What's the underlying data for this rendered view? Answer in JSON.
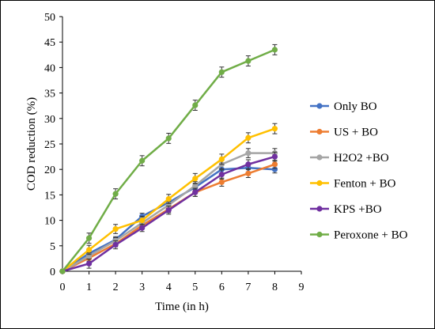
{
  "chart_data": {
    "type": "line",
    "title": "",
    "xlabel": "Time (in h)",
    "ylabel": "COD reduction (%)",
    "xlim": [
      0,
      9
    ],
    "ylim": [
      0,
      50
    ],
    "xticks": [
      "0",
      "1",
      "2",
      "3",
      "4",
      "5",
      "6",
      "7",
      "8",
      "9"
    ],
    "yticks": [
      "0",
      "5",
      "10",
      "15",
      "20",
      "25",
      "30",
      "35",
      "40",
      "45",
      "50"
    ],
    "grid": false,
    "legend_position": "right",
    "error_bars": true,
    "x": [
      0,
      1,
      2,
      3,
      4,
      5,
      6,
      7,
      8
    ],
    "series": [
      {
        "name": "Only BO",
        "color": "#4472C4",
        "values": [
          0,
          3.5,
          6.2,
          10.8,
          13.5,
          16.5,
          20.0,
          20.3,
          20.0
        ],
        "error": [
          0.3,
          0.6,
          0.6,
          0.6,
          0.7,
          0.8,
          0.8,
          0.8,
          0.7
        ]
      },
      {
        "name": "US + BO",
        "color": "#ED7D31",
        "values": [
          0,
          2.6,
          5.4,
          9.0,
          12.2,
          15.5,
          17.5,
          19.2,
          21.0
        ],
        "error": [
          0.3,
          0.6,
          0.6,
          0.6,
          0.7,
          0.8,
          0.8,
          0.8,
          0.8
        ]
      },
      {
        "name": "H2O2 +BO",
        "color": "#A5A5A5",
        "values": [
          0,
          3.0,
          6.0,
          9.5,
          13.0,
          16.8,
          21.0,
          23.2,
          23.2
        ],
        "error": [
          0.3,
          0.6,
          0.6,
          0.6,
          0.7,
          0.8,
          0.9,
          0.9,
          0.9
        ]
      },
      {
        "name": "Fenton + BO",
        "color": "#FFC000",
        "values": [
          0,
          4.2,
          8.3,
          10.0,
          14.2,
          18.2,
          22.0,
          26.2,
          28.0
        ],
        "error": [
          0.3,
          0.9,
          0.9,
          0.8,
          0.9,
          1.0,
          1.0,
          1.0,
          1.0
        ]
      },
      {
        "name": "KPS +BO",
        "color": "#7030A0",
        "values": [
          0,
          1.5,
          5.2,
          8.5,
          12.0,
          15.5,
          19.0,
          21.0,
          22.5
        ],
        "error": [
          0.3,
          0.9,
          0.8,
          0.7,
          0.8,
          0.8,
          0.9,
          0.9,
          0.9
        ]
      },
      {
        "name": "Peroxone + BO",
        "color": "#70AD47",
        "values": [
          0,
          6.5,
          15.2,
          21.7,
          26.1,
          32.6,
          39.1,
          41.3,
          43.5
        ],
        "error": [
          0.3,
          1.0,
          1.0,
          1.0,
          1.0,
          1.0,
          1.0,
          1.0,
          1.0
        ]
      }
    ]
  }
}
